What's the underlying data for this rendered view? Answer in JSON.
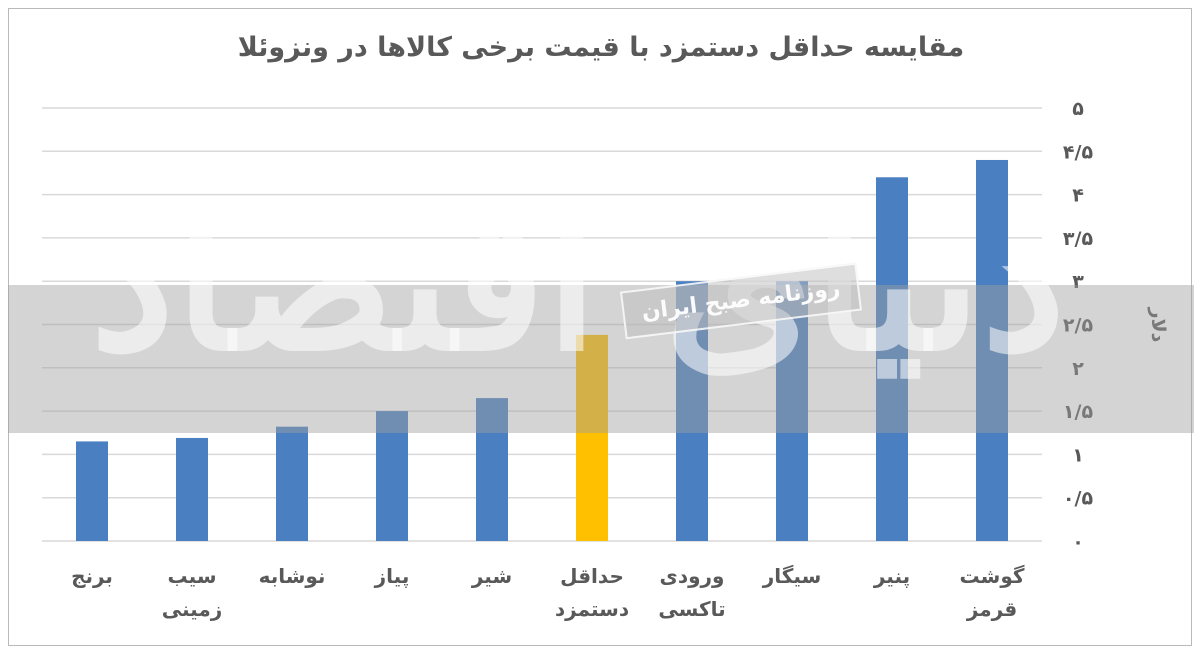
{
  "chart_data": {
    "type": "bar",
    "title": "مقایسه حداقل دستمزد با قیمت برخی کالاها در ونزوئلا",
    "ylabel": "دلار",
    "xlabel": "",
    "ylim": [
      0,
      5
    ],
    "y_ticks": [
      0,
      0.5,
      1,
      1.5,
      2,
      2.5,
      3,
      3.5,
      4,
      4.5,
      5
    ],
    "y_tick_labels": [
      "۰",
      "۰/۵",
      "۱",
      "۱/۵",
      "۲",
      "۲/۵",
      "۳",
      "۳/۵",
      "۴",
      "۴/۵",
      "۵"
    ],
    "grid": true,
    "categories": [
      [
        "گوشت",
        "قرمز"
      ],
      [
        "پنیر"
      ],
      [
        "سیگار"
      ],
      [
        "ورودی",
        "تاکسی"
      ],
      [
        "حداقل",
        "دستمزد"
      ],
      [
        "شیر"
      ],
      [
        "پیاز"
      ],
      [
        "نوشابه"
      ],
      [
        "سیب",
        "زمینی"
      ],
      [
        "برنج"
      ]
    ],
    "values": [
      4.4,
      4.2,
      3.0,
      3.0,
      2.38,
      1.65,
      1.5,
      1.32,
      1.19,
      1.15
    ],
    "colors": [
      "#4a7fc1",
      "#4a7fc1",
      "#4a7fc1",
      "#4a7fc1",
      "#ffc000",
      "#4a7fc1",
      "#4a7fc1",
      "#4a7fc1",
      "#4a7fc1",
      "#4a7fc1"
    ]
  },
  "watermark": {
    "logo": "دنیای اقتصاد",
    "subtitle": "روزنامه صبح ایران"
  },
  "colors": {
    "bar": "#4a7fc1",
    "highlight": "#ffc000",
    "grid": "#d9d9d9",
    "text": "#595959"
  }
}
